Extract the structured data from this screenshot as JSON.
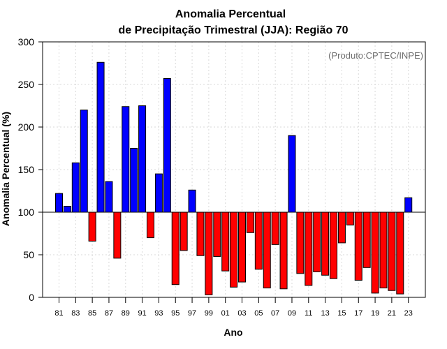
{
  "chart_data": {
    "type": "bar",
    "title_line1": "Anomalia Percentual",
    "title_line2": "de Precipitação Trimestral (JJA): Região 70",
    "xlabel": "Ano",
    "ylabel": "Anomalia Percentual (%)",
    "credit": "(Produto:CPTEC/INPE)",
    "ylim": [
      0,
      300
    ],
    "yticks": [
      "0",
      "50",
      "100",
      "150",
      "200",
      "250",
      "300"
    ],
    "baseline": 100,
    "colors": {
      "above": "#0000ff",
      "below": "#ff0000",
      "edge": "#000000"
    },
    "categories": [
      "81",
      "82",
      "83",
      "84",
      "85",
      "86",
      "87",
      "88",
      "89",
      "90",
      "91",
      "92",
      "93",
      "94",
      "95",
      "96",
      "97",
      "98",
      "99",
      "00",
      "01",
      "02",
      "03",
      "04",
      "05",
      "06",
      "07",
      "08",
      "09",
      "10",
      "11",
      "12",
      "13",
      "14",
      "15",
      "16",
      "17",
      "18",
      "19",
      "20",
      "21",
      "22",
      "23"
    ],
    "xtick_labels": [
      "81",
      "83",
      "85",
      "87",
      "89",
      "91",
      "93",
      "95",
      "97",
      "99",
      "01",
      "03",
      "05",
      "07",
      "09",
      "11",
      "13",
      "15",
      "17",
      "19",
      "21",
      "23"
    ],
    "values": [
      122,
      107,
      158,
      220,
      66,
      276,
      136,
      46,
      224,
      175,
      225,
      70,
      145,
      257,
      15,
      55,
      126,
      49,
      3,
      48,
      31,
      12,
      18,
      76,
      33,
      11,
      62,
      10,
      190,
      28,
      14,
      30,
      26,
      22,
      64,
      85,
      20,
      35,
      5,
      11,
      8,
      4,
      117
    ]
  }
}
